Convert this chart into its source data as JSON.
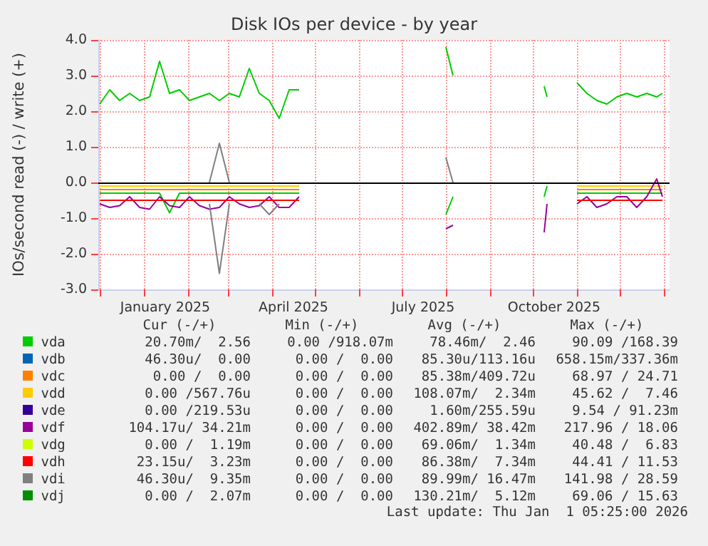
{
  "chart_data": {
    "type": "line",
    "title": "Disk IOs per device - by year",
    "ylabel": "IOs/second read (-) / write (+)",
    "x": [
      "2024-12-01",
      "2024-12-08",
      "2024-12-15",
      "2024-12-22",
      "2024-12-29",
      "2025-01-05",
      "2025-01-12",
      "2025-01-19",
      "2025-01-26",
      "2025-02-02",
      "2025-02-09",
      "2025-02-16",
      "2025-02-23",
      "2025-03-02",
      "2025-03-09",
      "2025-03-16",
      "2025-03-23",
      "2025-03-30",
      "2025-04-06",
      "2025-04-13",
      "2025-04-20",
      "2025-06-01",
      "2025-08-01",
      "2025-08-06",
      "2025-09-01",
      "2025-10-09",
      "2025-10-11",
      "2025-10-20",
      "2025-11-01",
      "2025-11-08",
      "2025-11-15",
      "2025-11-22",
      "2025-11-29",
      "2025-12-06",
      "2025-12-13",
      "2025-12-20",
      "2025-12-27",
      "2025-12-31"
    ],
    "xlim": [
      "2024-11-30",
      "2026-01-05"
    ],
    "xticks": [
      {
        "value": "2024-12-01",
        "label": null
      },
      {
        "value": "2025-01-01",
        "label": null
      },
      {
        "value": "2025-02-01",
        "label": null
      },
      {
        "value": "2025-03-01",
        "label": null
      },
      {
        "value": "2025-04-01",
        "label": null
      },
      {
        "value": "2025-05-01",
        "label": null
      },
      {
        "value": "2025-06-01",
        "label": null
      },
      {
        "value": "2025-07-01",
        "label": null
      },
      {
        "value": "2025-08-01",
        "label": null
      },
      {
        "value": "2025-09-01",
        "label": null
      },
      {
        "value": "2025-10-01",
        "label": null
      },
      {
        "value": "2025-11-01",
        "label": null
      },
      {
        "value": "2025-12-01",
        "label": null
      },
      {
        "value": "2026-01-01",
        "label": null
      },
      {
        "value": "2025-01-16",
        "label": "January 2025"
      },
      {
        "value": "2025-04-16",
        "label": "April 2025"
      },
      {
        "value": "2025-07-16",
        "label": "July 2025"
      },
      {
        "value": "2025-10-16",
        "label": "October 2025"
      }
    ],
    "ylim": [
      -3,
      4
    ],
    "yticks": [
      {
        "value": -3,
        "label": "-3.0"
      },
      {
        "value": -2,
        "label": "-2.0"
      },
      {
        "value": -1,
        "label": "-1.0"
      },
      {
        "value": 0,
        "label": "0.0"
      },
      {
        "value": 1,
        "label": "1.0"
      },
      {
        "value": 2,
        "label": "2.0"
      },
      {
        "value": 3,
        "label": "3.0"
      },
      {
        "value": 4,
        "label": "4.0"
      }
    ],
    "grid": true,
    "legend": "bottom",
    "marker": "none",
    "line_style": "solid",
    "ref_lines": [
      {
        "axis": "y",
        "value": 0,
        "color": "#000000"
      }
    ],
    "series": [
      {
        "name": "vda",
        "color": "#00cc00",
        "values": [
          2.2,
          2.6,
          2.3,
          2.5,
          2.3,
          2.4,
          3.4,
          2.5,
          2.6,
          2.3,
          2.4,
          2.5,
          2.3,
          2.5,
          2.4,
          3.2,
          2.5,
          2.3,
          1.8,
          2.6,
          2.6,
          null,
          3.8,
          3.0,
          null,
          2.7,
          2.4,
          null,
          2.8,
          2.5,
          2.3,
          2.2,
          2.4,
          2.5,
          2.4,
          2.5,
          2.4,
          2.5
        ]
      },
      {
        "color": "#00cc00",
        "values": [
          -0.3,
          -0.3,
          -0.3,
          -0.3,
          -0.3,
          -0.3,
          -0.3,
          -0.85,
          -0.3,
          -0.3,
          -0.3,
          -0.3,
          -0.3,
          -0.3,
          -0.3,
          -0.3,
          -0.3,
          -0.3,
          -0.3,
          -0.3,
          -0.3,
          null,
          -0.9,
          -0.4,
          null,
          -0.4,
          -0.1,
          null,
          -0.3,
          -0.3,
          -0.3,
          -0.3,
          -0.3,
          -0.3,
          -0.3,
          -0.3,
          -0.3,
          -0.3
        ]
      },
      {
        "name": "vdb",
        "color": "#0066b3",
        "values": [
          null,
          null,
          null,
          null,
          null,
          null,
          null,
          null,
          null,
          null,
          null,
          null,
          null,
          null,
          null,
          null,
          null,
          null,
          null,
          null,
          null,
          null,
          null,
          null,
          null,
          null,
          null,
          null,
          null,
          null,
          null,
          null,
          null,
          null,
          null,
          null,
          null,
          null
        ]
      },
      {
        "name": "vdc",
        "color": "#ff8000",
        "values": [
          -0.2,
          -0.2,
          -0.2,
          -0.2,
          -0.2,
          -0.2,
          -0.2,
          -0.2,
          -0.2,
          -0.2,
          -0.2,
          -0.2,
          -0.2,
          -0.2,
          -0.2,
          -0.2,
          -0.2,
          -0.2,
          -0.2,
          -0.2,
          -0.2,
          null,
          null,
          null,
          null,
          null,
          null,
          null,
          -0.2,
          -0.2,
          -0.2,
          -0.2,
          -0.2,
          -0.2,
          -0.2,
          -0.2,
          -0.2,
          -0.2
        ]
      },
      {
        "name": "vdd",
        "color": "#ffcc00",
        "values": [
          -0.1,
          -0.1,
          -0.1,
          -0.1,
          -0.1,
          -0.1,
          -0.1,
          -0.1,
          -0.1,
          -0.1,
          -0.1,
          -0.1,
          -0.1,
          -0.1,
          -0.1,
          -0.1,
          -0.1,
          -0.1,
          -0.1,
          -0.1,
          -0.1,
          null,
          null,
          null,
          null,
          null,
          null,
          null,
          -0.1,
          -0.1,
          -0.1,
          -0.1,
          -0.1,
          -0.1,
          -0.1,
          -0.1,
          -0.1,
          -0.1
        ]
      },
      {
        "name": "vde",
        "color": "#330099",
        "values": [
          null,
          null,
          null,
          null,
          null,
          null,
          null,
          null,
          null,
          null,
          null,
          null,
          null,
          null,
          null,
          null,
          null,
          null,
          null,
          null,
          null,
          null,
          null,
          null,
          null,
          null,
          null,
          null,
          null,
          null,
          null,
          null,
          null,
          null,
          null,
          null,
          null,
          null
        ]
      },
      {
        "name": "vdf",
        "color": "#990099",
        "values": [
          -0.6,
          -0.7,
          -0.65,
          -0.4,
          -0.7,
          -0.75,
          -0.4,
          -0.65,
          -0.7,
          -0.4,
          -0.65,
          -0.75,
          -0.7,
          -0.4,
          -0.6,
          -0.7,
          -0.65,
          -0.4,
          -0.7,
          -0.7,
          -0.4,
          null,
          -1.3,
          -1.2,
          null,
          -1.4,
          -0.6,
          null,
          -0.6,
          -0.4,
          -0.7,
          -0.6,
          -0.4,
          -0.4,
          -0.7,
          -0.4,
          0.1,
          -0.4
        ]
      },
      {
        "name": "vdg",
        "color": "#ccff00",
        "values": [
          null,
          null,
          null,
          null,
          null,
          null,
          null,
          null,
          null,
          null,
          null,
          null,
          null,
          null,
          null,
          null,
          null,
          null,
          null,
          null,
          null,
          null,
          null,
          null,
          null,
          null,
          null,
          null,
          null,
          null,
          null,
          null,
          null,
          null,
          null,
          null,
          null,
          null
        ]
      },
      {
        "name": "vdh",
        "color": "#ff0000",
        "values": [
          -0.5,
          -0.5,
          -0.5,
          -0.5,
          -0.5,
          -0.5,
          -0.5,
          -0.5,
          -0.5,
          -0.5,
          -0.5,
          -0.5,
          -0.5,
          -0.5,
          -0.5,
          -0.5,
          -0.5,
          -0.5,
          -0.5,
          -0.5,
          -0.5,
          null,
          null,
          null,
          null,
          null,
          null,
          null,
          -0.5,
          -0.5,
          -0.5,
          -0.5,
          -0.5,
          -0.5,
          -0.5,
          -0.5,
          -0.5,
          -0.5
        ]
      },
      {
        "name": "vdi",
        "color": "#808080",
        "values": [
          null,
          null,
          null,
          null,
          null,
          null,
          null,
          null,
          null,
          null,
          null,
          -0.6,
          -2.55,
          -0.6,
          null,
          null,
          -0.6,
          -0.9,
          -0.6,
          null,
          null,
          null,
          null,
          null,
          null,
          null,
          null,
          null,
          null,
          null,
          null,
          null,
          null,
          null,
          null,
          null,
          null,
          null
        ]
      },
      {
        "color": "#808080",
        "values": [
          null,
          null,
          null,
          null,
          null,
          null,
          null,
          null,
          null,
          null,
          null,
          0,
          1.1,
          0,
          null,
          null,
          null,
          null,
          null,
          null,
          null,
          null,
          0.7,
          0,
          null,
          null,
          null,
          null,
          null,
          null,
          null,
          null,
          null,
          null,
          null,
          null,
          null,
          null
        ]
      },
      {
        "name": "vdj",
        "color": "#008f00",
        "values": [
          null,
          null,
          null,
          null,
          null,
          null,
          null,
          null,
          null,
          null,
          null,
          null,
          null,
          null,
          null,
          null,
          null,
          null,
          null,
          null,
          null,
          null,
          null,
          null,
          null,
          null,
          null,
          null,
          null,
          null,
          null,
          null,
          null,
          null,
          null,
          null,
          null,
          null
        ]
      }
    ],
    "annotations": [
      "Cur (-/+)",
      "Min (-/+)",
      "Avg (-/+)",
      "Max (-/+)",
      "20.70m/  2.56",
      "0.00 /918.07m",
      "78.46m/  2.46",
      "90.09 /168.39",
      "46.30u/  0.00",
      "0.00 /  0.00",
      "85.30u/113.16u",
      "658.15m/337.36m",
      "0.00 /  0.00",
      "0.00 /  0.00",
      "85.38m/409.72u",
      "68.97 / 24.71",
      "0.00 /567.76u",
      "0.00 /  0.00",
      "108.07m/  2.34m",
      "45.62 /  7.46",
      "0.00 /219.53u",
      "0.00 /  0.00",
      "1.60m/255.59u",
      "9.54 / 91.23m",
      "104.17u/ 34.21m",
      "0.00 /  0.00",
      "402.89m/ 38.42m",
      "217.96 / 18.06",
      "0.00 /  1.19m",
      "0.00 /  0.00",
      "69.06m/  1.34m",
      "40.48 /  6.83",
      "23.15u/  3.23m",
      "0.00 /  0.00",
      "86.38m/  7.34m",
      "44.41 / 11.53",
      "46.30u/  9.35m",
      "0.00 /  0.00",
      "89.99m/ 16.47m",
      "141.98 / 28.59",
      "0.00 /  2.07m",
      "0.00 /  0.00",
      "130.21m/  5.12m",
      "69.06 / 15.63",
      "Last update: Thu Jan  1 05:25:00 2026"
    ]
  }
}
